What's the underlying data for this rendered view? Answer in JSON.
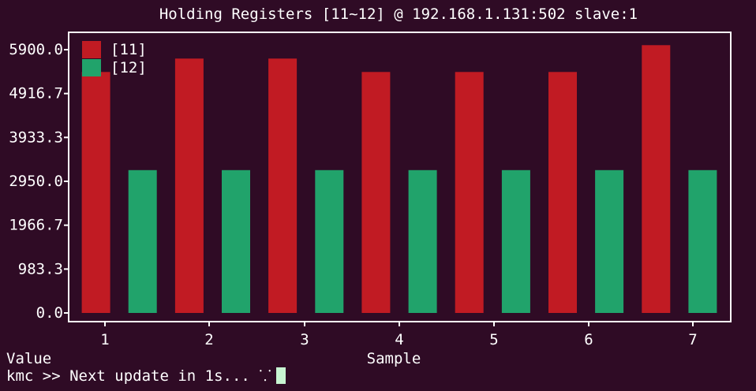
{
  "chart_data": {
    "type": "bar",
    "title": "Holding Registers [11~12] @ 192.168.1.131:502 slave:1",
    "xlabel": "Sample",
    "ylabel": "Value",
    "categories": [
      "1",
      "2",
      "3",
      "4",
      "5",
      "6",
      "7"
    ],
    "series": [
      {
        "name": "[11]",
        "color": "#c11b23",
        "values": [
          5400,
          5700,
          5700,
          5400,
          5400,
          5400,
          6000
        ]
      },
      {
        "name": "[12]",
        "color": "#21a36b",
        "values": [
          3200,
          3200,
          3200,
          3200,
          3200,
          3200,
          3200
        ]
      }
    ],
    "y_ticks": [
      "0.0",
      "983.3",
      "1966.7",
      "2950.0",
      "3933.3",
      "4916.7",
      "5900.0"
    ],
    "ylim": [
      0,
      6000
    ],
    "legend_position": "top-left",
    "grid": false
  },
  "terminal": {
    "prompt": "kmc >> Next update in 1s... ⸪"
  }
}
